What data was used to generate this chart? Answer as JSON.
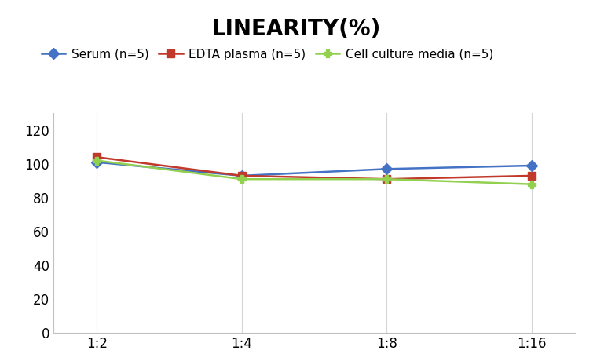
{
  "title": "LINEARITY(%)",
  "x_labels": [
    "1:2",
    "1:4",
    "1:8",
    "1:16"
  ],
  "x_positions": [
    0,
    1,
    2,
    3
  ],
  "series": [
    {
      "label": "Serum (n=5)",
      "values": [
        101,
        93,
        97,
        99
      ],
      "color": "#4472C4",
      "marker": "D",
      "markersize": 7
    },
    {
      "label": "EDTA plasma (n=5)",
      "values": [
        104,
        93,
        91,
        93
      ],
      "color": "#C0392B",
      "marker": "s",
      "markersize": 7
    },
    {
      "label": "Cell culture media (n=5)",
      "values": [
        102,
        91,
        91,
        88
      ],
      "color": "#92D050",
      "marker": "P",
      "markersize": 7
    }
  ],
  "ylim": [
    0,
    130
  ],
  "yticks": [
    0,
    20,
    40,
    60,
    80,
    100,
    120
  ],
  "title_fontsize": 20,
  "legend_fontsize": 11,
  "tick_fontsize": 12,
  "background_color": "#ffffff",
  "grid_color": "#d5d5d5",
  "spine_color": "#c0c0c0"
}
